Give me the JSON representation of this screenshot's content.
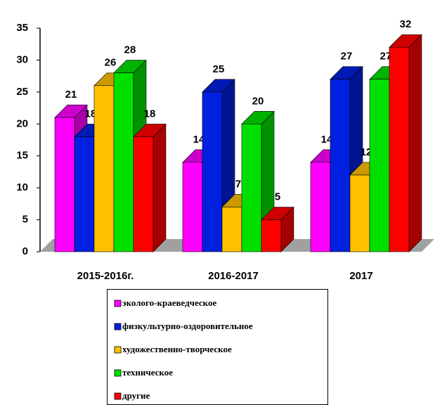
{
  "chart_data": {
    "type": "bar3d",
    "categories": [
      "2015-2016г.",
      "2016-2017",
      "2017"
    ],
    "series": [
      {
        "name": "эколого-краеведческое",
        "color": "#ff00ff",
        "values": [
          21,
          14,
          14
        ]
      },
      {
        "name": "физкультурно-оздоровительное",
        "color": "#0020e0",
        "values": [
          18,
          25,
          27
        ]
      },
      {
        "name": "художественно-творческое",
        "color": "#ffc000",
        "values": [
          26,
          7,
          12
        ]
      },
      {
        "name": "техническое",
        "color": "#00e000",
        "values": [
          28,
          20,
          27
        ]
      },
      {
        "name": "другие",
        "color": "#ff0000",
        "values": [
          18,
          5,
          32
        ]
      }
    ],
    "ylim": [
      0,
      35
    ],
    "yticks": [
      0,
      5,
      10,
      15,
      20,
      25,
      30,
      35
    ],
    "grid": false
  }
}
